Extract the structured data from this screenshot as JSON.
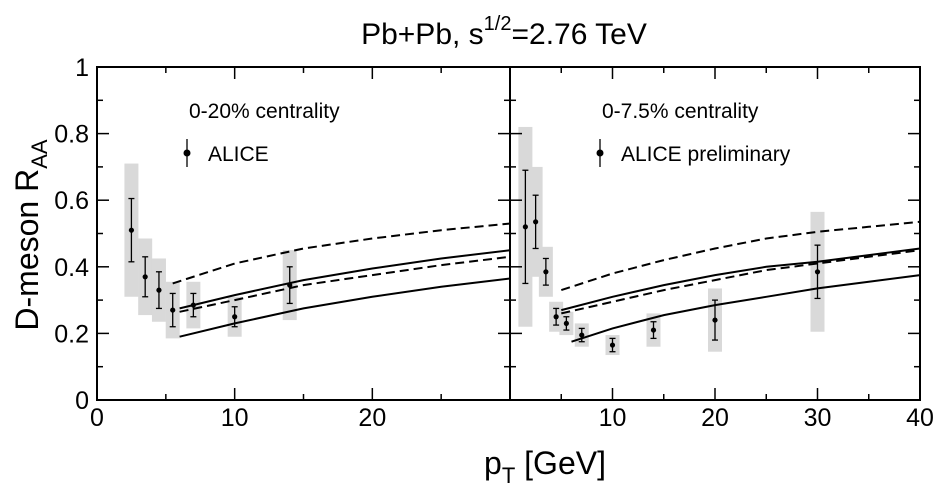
{
  "chart_data": {
    "type": "scatter",
    "title": {
      "pre": "Pb+Pb, s",
      "sup": "1/2",
      "post": "=2.76  TeV"
    },
    "ylabel": {
      "main": "D-meson R",
      "sub": "AA"
    },
    "xlabel": {
      "main": "p",
      "sub": "T",
      "post": "  [GeV]"
    },
    "ylim": [
      0,
      1
    ],
    "y_ticks": [
      "0",
      "0.2",
      "0.4",
      "0.6",
      "0.8",
      "1"
    ],
    "panels": [
      {
        "xlim": [
          0,
          30
        ],
        "x_ticks": [
          "0",
          "10",
          "20"
        ],
        "annotation": "0-20% centrality",
        "legend": "ALICE",
        "points": [
          {
            "x": 2.5,
            "y": 0.51,
            "err": 0.095,
            "syst": 0.2
          },
          {
            "x": 3.5,
            "y": 0.37,
            "err": 0.06,
            "syst": 0.115
          },
          {
            "x": 4.5,
            "y": 0.33,
            "err": 0.055,
            "syst": 0.095
          },
          {
            "x": 5.5,
            "y": 0.27,
            "err": 0.05,
            "syst": 0.085
          },
          {
            "x": 7.0,
            "y": 0.285,
            "err": 0.035,
            "syst": 0.07
          },
          {
            "x": 10.0,
            "y": 0.25,
            "err": 0.03,
            "syst": 0.06
          },
          {
            "x": 14.0,
            "y": 0.345,
            "err": 0.055,
            "syst": 0.105
          }
        ],
        "curves": [
          {
            "style": "dashed",
            "points": [
              [
                5.5,
                0.35
              ],
              [
                10,
                0.41
              ],
              [
                15,
                0.455
              ],
              [
                20,
                0.485
              ],
              [
                25,
                0.51
              ],
              [
                30,
                0.53
              ]
            ]
          },
          {
            "style": "solid",
            "points": [
              [
                6,
                0.275
              ],
              [
                10,
                0.315
              ],
              [
                15,
                0.36
              ],
              [
                20,
                0.395
              ],
              [
                25,
                0.425
              ],
              [
                30,
                0.45
              ]
            ]
          },
          {
            "style": "dashed",
            "points": [
              [
                6,
                0.265
              ],
              [
                10,
                0.3
              ],
              [
                15,
                0.345
              ],
              [
                20,
                0.375
              ],
              [
                25,
                0.405
              ],
              [
                30,
                0.43
              ]
            ]
          },
          {
            "style": "solid",
            "points": [
              [
                6,
                0.19
              ],
              [
                10,
                0.23
              ],
              [
                15,
                0.275
              ],
              [
                20,
                0.31
              ],
              [
                25,
                0.34
              ],
              [
                30,
                0.365
              ]
            ]
          }
        ]
      },
      {
        "xlim": [
          0,
          40
        ],
        "x_ticks": [
          "10",
          "20",
          "30",
          "40"
        ],
        "annotation": "0-7.5% centrality",
        "legend": "ALICE preliminary",
        "points": [
          {
            "x": 1.5,
            "y": 0.52,
            "err": 0.17,
            "syst": 0.3
          },
          {
            "x": 2.5,
            "y": 0.535,
            "err": 0.08,
            "syst": 0.165
          },
          {
            "x": 3.5,
            "y": 0.385,
            "err": 0.04,
            "syst": 0.075
          },
          {
            "x": 4.5,
            "y": 0.25,
            "err": 0.025,
            "syst": 0.045
          },
          {
            "x": 5.5,
            "y": 0.23,
            "err": 0.02,
            "syst": 0.035
          },
          {
            "x": 7.0,
            "y": 0.195,
            "err": 0.02,
            "syst": 0.035
          },
          {
            "x": 10.0,
            "y": 0.165,
            "err": 0.02,
            "syst": 0.03
          },
          {
            "x": 14.0,
            "y": 0.21,
            "err": 0.025,
            "syst": 0.05
          },
          {
            "x": 20.0,
            "y": 0.24,
            "err": 0.06,
            "syst": 0.095
          },
          {
            "x": 30.0,
            "y": 0.385,
            "err": 0.08,
            "syst": 0.18
          }
        ],
        "curves": [
          {
            "style": "dashed",
            "points": [
              [
                5,
                0.33
              ],
              [
                10,
                0.38
              ],
              [
                15,
                0.42
              ],
              [
                20,
                0.455
              ],
              [
                25,
                0.485
              ],
              [
                30,
                0.505
              ],
              [
                35,
                0.52
              ],
              [
                40,
                0.535
              ]
            ]
          },
          {
            "style": "solid",
            "points": [
              [
                5,
                0.27
              ],
              [
                10,
                0.31
              ],
              [
                15,
                0.345
              ],
              [
                20,
                0.375
              ],
              [
                25,
                0.4
              ],
              [
                30,
                0.415
              ],
              [
                35,
                0.435
              ],
              [
                40,
                0.455
              ]
            ]
          },
          {
            "style": "dashed",
            "points": [
              [
                5,
                0.26
              ],
              [
                10,
                0.295
              ],
              [
                15,
                0.33
              ],
              [
                20,
                0.36
              ],
              [
                25,
                0.39
              ],
              [
                30,
                0.41
              ],
              [
                35,
                0.43
              ],
              [
                40,
                0.45
              ]
            ]
          },
          {
            "style": "solid",
            "points": [
              [
                6,
                0.175
              ],
              [
                10,
                0.215
              ],
              [
                15,
                0.255
              ],
              [
                20,
                0.285
              ],
              [
                25,
                0.31
              ],
              [
                30,
                0.335
              ],
              [
                35,
                0.355
              ],
              [
                40,
                0.375
              ]
            ]
          }
        ]
      }
    ]
  }
}
